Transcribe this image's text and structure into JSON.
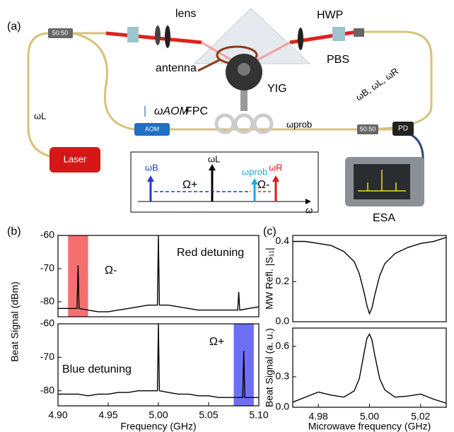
{
  "schematic": {
    "panel_label": "(a)",
    "splitter_left": "50:50",
    "lens": "lens",
    "hwp": "HWP",
    "pbs": "PBS",
    "antenna": "antenna",
    "yig": "YIG",
    "omega_l": "ωL",
    "omega_aom": "ωAOM",
    "aom": "AOM",
    "fpc": "FPC",
    "omega_prob": "ωprob",
    "splitter_right": "50:50",
    "pd": "PD",
    "output": "ωB, ωL, ωR",
    "laser": "Laser",
    "esa": "ESA",
    "inset": {
      "omega_b": "ωB",
      "omega_l": "ωL",
      "omega_prob": "ωprob",
      "omega_r": "ωR",
      "omega_plus": "Ω+",
      "omega_minus": "Ω-",
      "axis": "ω"
    }
  },
  "panel_b": "(b)",
  "panel_c": "(c)",
  "chart_data": [
    {
      "type": "line",
      "xlim": [
        4.9,
        5.1
      ],
      "ylim": [
        -84.5,
        -60
      ],
      "yticks": [
        -60,
        -70,
        -80
      ],
      "annotations": [
        "Red detuning",
        "Ω-"
      ],
      "highlight": {
        "range": [
          4.91,
          4.93
        ],
        "color": "#f47070"
      },
      "series": [
        {
          "color": "#000000",
          "x": [
            4.9,
            4.91,
            4.919,
            4.92,
            4.921,
            4.93,
            4.94,
            4.95,
            4.96,
            4.97,
            4.98,
            4.99,
            4.999,
            5.0,
            5.001,
            5.01,
            5.02,
            5.03,
            5.04,
            5.05,
            5.06,
            5.07,
            5.079,
            5.08,
            5.081,
            5.09,
            5.1
          ],
          "values": [
            -82,
            -82,
            -82,
            -69,
            -82,
            -82.5,
            -83,
            -83,
            -82.5,
            -82,
            -81.5,
            -81,
            -81,
            -60,
            -81,
            -81,
            -81.5,
            -82,
            -82.5,
            -82.5,
            -82.5,
            -82.5,
            -82.5,
            -77,
            -82.5,
            -82,
            -81.5
          ]
        }
      ]
    },
    {
      "type": "line",
      "xlim": [
        4.9,
        5.1
      ],
      "ylim": [
        -84.5,
        -60
      ],
      "yticks": [
        -60,
        -70,
        -80
      ],
      "xticks": [
        {
          "value": 4.9,
          "label": "4.90"
        },
        4.95,
        {
          "value": 5.0,
          "label": "5.00"
        },
        5.05,
        {
          "value": 5.1,
          "label": "5.10"
        }
      ],
      "xlabel": "Frequency (GHz)",
      "ylabel": "Beat Signal (dBm)",
      "annotations": [
        "Blue detuning",
        "Ω+"
      ],
      "highlight": {
        "range": [
          5.075,
          5.095
        ],
        "color": "#6f6ff5"
      },
      "series": [
        {
          "color": "#000000",
          "x": [
            4.9,
            4.91,
            4.92,
            4.93,
            4.94,
            4.95,
            4.96,
            4.97,
            4.98,
            4.99,
            4.999,
            5.0,
            5.001,
            5.01,
            5.02,
            5.03,
            5.04,
            5.05,
            5.06,
            5.07,
            5.08,
            5.084,
            5.085,
            5.086,
            5.09,
            5.1
          ],
          "values": [
            -81,
            -81,
            -81,
            -81.5,
            -81,
            -81,
            -80.5,
            -80.5,
            -80,
            -80,
            -80,
            -60,
            -80,
            -80.5,
            -81,
            -81,
            -81.5,
            -81.5,
            -82,
            -82,
            -82,
            -82,
            -68,
            -82,
            -82,
            -82
          ]
        }
      ]
    },
    {
      "type": "line",
      "xlim": [
        4.97,
        5.03
      ],
      "ylim": [
        0,
        0.43
      ],
      "yticks": [
        {
          "value": 0,
          "label": "0.0"
        },
        0.2,
        0.4
      ],
      "ylabel": "MW Refl. |S₁₁|",
      "series": [
        {
          "color": "#000000",
          "x": [
            4.97,
            4.975,
            4.98,
            4.985,
            4.99,
            4.994,
            4.996,
            4.998,
            4.999,
            5.0,
            5.001,
            5.002,
            5.004,
            5.006,
            5.01,
            5.015,
            5.02,
            5.025,
            5.03
          ],
          "values": [
            0.4,
            0.4,
            0.39,
            0.38,
            0.35,
            0.3,
            0.24,
            0.14,
            0.08,
            0.04,
            0.07,
            0.13,
            0.23,
            0.29,
            0.34,
            0.37,
            0.39,
            0.4,
            0.42
          ]
        }
      ]
    },
    {
      "type": "line",
      "xlim": [
        4.97,
        5.03
      ],
      "ylim": [
        0,
        0.78
      ],
      "yticks": [
        {
          "value": 0,
          "label": "0.0"
        },
        0.3,
        0.6
      ],
      "xticks": [
        4.98,
        {
          "value": 5.0,
          "label": "5.00"
        },
        5.02
      ],
      "xlabel": "Microwave frequency (GHz)",
      "ylabel": "Beat Signal (a. u.)",
      "series": [
        {
          "color": "#000000",
          "x": [
            4.97,
            4.975,
            4.98,
            4.985,
            4.99,
            4.994,
            4.996,
            4.998,
            4.999,
            5.0,
            5.001,
            5.002,
            5.004,
            5.006,
            5.01,
            5.015,
            5.02,
            5.025,
            5.03
          ],
          "values": [
            0.05,
            0.1,
            0.15,
            0.12,
            0.1,
            0.16,
            0.28,
            0.55,
            0.68,
            0.72,
            0.66,
            0.52,
            0.28,
            0.17,
            0.1,
            0.11,
            0.13,
            0.08,
            0.04
          ]
        }
      ]
    }
  ]
}
